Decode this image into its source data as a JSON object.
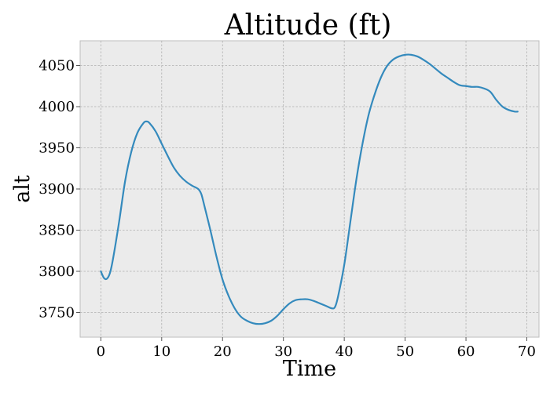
{
  "chart_data": {
    "type": "line",
    "title": "Altitude (ft)",
    "xlabel": "Time",
    "ylabel": "alt",
    "xlim": [
      -3.4,
      72
    ],
    "ylim": [
      3720,
      4080
    ],
    "x_ticks": [
      0,
      10,
      20,
      30,
      40,
      50,
      60,
      70
    ],
    "y_ticks": [
      3750,
      3800,
      3850,
      3900,
      3950,
      4000,
      4050
    ],
    "grid": true,
    "series": [
      {
        "color": "#348abd",
        "x": [
          0,
          0.5,
          1,
          1.5,
          2,
          3,
          4,
          5,
          6,
          7,
          7.5,
          8,
          9,
          10,
          11,
          12,
          13,
          14,
          15,
          16,
          16.5,
          17,
          18,
          19,
          20,
          21,
          22,
          23,
          24,
          25,
          26,
          27,
          28,
          29,
          30,
          31,
          32,
          33,
          34,
          35,
          36,
          37,
          38,
          38.5,
          39,
          40,
          41,
          42,
          43,
          44,
          45,
          46,
          47,
          48,
          49,
          50,
          51,
          52,
          53,
          54,
          55,
          56,
          57,
          58,
          59,
          60,
          61,
          62,
          63,
          64,
          65,
          66,
          67,
          68,
          68.5
        ],
        "y": [
          3800,
          3792,
          3791,
          3798,
          3815,
          3860,
          3910,
          3945,
          3968,
          3980,
          3982,
          3980,
          3970,
          3955,
          3940,
          3926,
          3916,
          3909,
          3904,
          3900,
          3894,
          3880,
          3850,
          3818,
          3790,
          3770,
          3755,
          3745,
          3740,
          3737,
          3736,
          3737,
          3740,
          3746,
          3754,
          3761,
          3765,
          3766,
          3766,
          3764,
          3761,
          3758,
          3755,
          3757,
          3770,
          3808,
          3860,
          3912,
          3955,
          3990,
          4015,
          4035,
          4049,
          4057,
          4061,
          4063,
          4063,
          4061,
          4057,
          4052,
          4046,
          4040,
          4035,
          4030,
          4026,
          4025,
          4024,
          4024,
          4022,
          4018,
          4008,
          4000,
          3996,
          3994,
          3994
        ]
      }
    ]
  }
}
